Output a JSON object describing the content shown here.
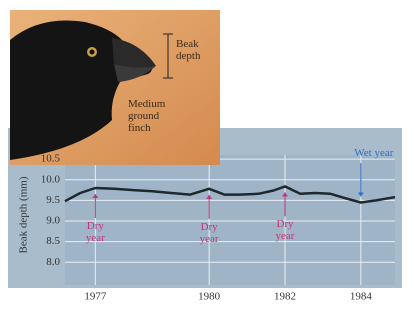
{
  "chart_data": {
    "type": "line",
    "ylabel": "Beak depth (mm)",
    "x": [
      1976.2,
      1976.6,
      1977,
      1977.5,
      1978,
      1978.5,
      1979,
      1979.5,
      1980,
      1980.4,
      1980.8,
      1981.3,
      1981.7,
      1982,
      1982.4,
      1982.8,
      1983.2,
      1983.6,
      1984,
      1984.4,
      1984.9
    ],
    "series": [
      {
        "color": "#1e282e",
        "values": [
          9.48,
          9.68,
          9.8,
          9.78,
          9.75,
          9.72,
          9.68,
          9.64,
          9.78,
          9.64,
          9.64,
          9.66,
          9.74,
          9.84,
          9.66,
          9.68,
          9.66,
          9.55,
          9.45,
          9.5,
          9.58
        ]
      }
    ],
    "xlim": [
      1976.2,
      1984.9
    ],
    "ylim": [
      7.45,
      10.6
    ],
    "xticks": [
      1977,
      1980,
      1982,
      1984
    ],
    "yticks": [
      10.5,
      {
        "value": 10,
        "label": "10.0"
      },
      9.5,
      {
        "value": 9,
        "label": "9.0"
      },
      8.5,
      {
        "value": 8,
        "label": "8.0"
      }
    ],
    "grid": true,
    "annotations": [
      {
        "text": "Dry year",
        "x": 1977,
        "color": "#c2337d"
      },
      {
        "text": "Dry year",
        "x": 1980,
        "color": "#c2337d"
      },
      {
        "text": "Dry year",
        "x": 1982,
        "color": "#c2337d"
      },
      {
        "text": "Wet year",
        "x": 1984,
        "color": "#2f6fc4"
      }
    ]
  },
  "illustration": {
    "beak_label": "Beak depth",
    "bird_label": "Medium ground finch"
  }
}
